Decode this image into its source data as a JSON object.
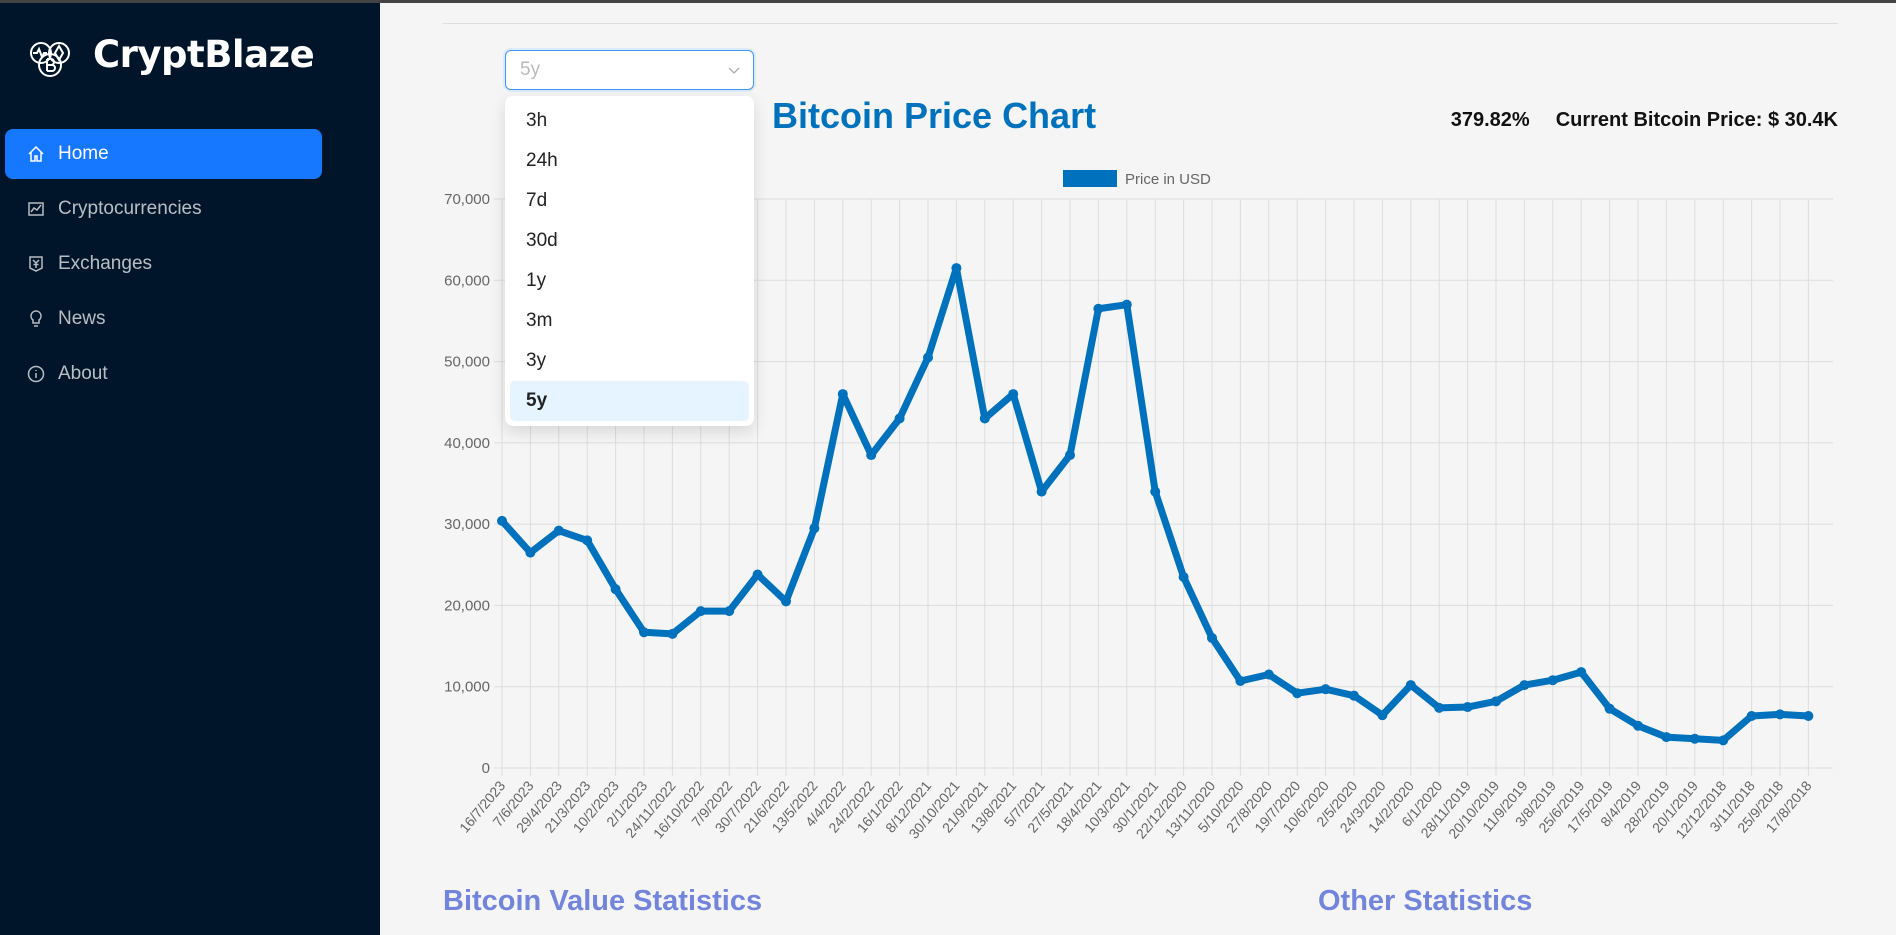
{
  "sidebar": {
    "brand": "CryptBlaze",
    "items": [
      {
        "label": "Home",
        "icon": "home-icon",
        "active": true
      },
      {
        "label": "Cryptocurrencies",
        "icon": "stock-chart-icon"
      },
      {
        "label": "Exchanges",
        "icon": "money-collect-icon"
      },
      {
        "label": "News",
        "icon": "bulb-icon"
      },
      {
        "label": "About",
        "icon": "info-circle-icon"
      }
    ]
  },
  "main": {
    "period_select": {
      "value": "5y",
      "options": [
        "3h",
        "24h",
        "7d",
        "30d",
        "1y",
        "3m",
        "3y",
        "5y"
      ]
    },
    "title": "Bitcoin Price Chart",
    "change": "379.82%",
    "current_price": "Current Bitcoin Price: $ 30.4K",
    "section_left": "Bitcoin Value Statistics",
    "section_right": "Other Statistics"
  },
  "colors": {
    "sidebar": "#001529",
    "accent": "#1677ff",
    "series": "#0071bd",
    "title": "#0071bd",
    "section": "#7284dc"
  },
  "chart_data": {
    "type": "line",
    "legend": [
      "Price in USD"
    ],
    "legend_placement": "top",
    "grid": true,
    "ylim": [
      0,
      70000
    ],
    "yticks": [
      0,
      10000,
      20000,
      30000,
      40000,
      50000,
      60000,
      70000
    ],
    "categories": [
      "16/7/2023",
      "7/6/2023",
      "29/4/2023",
      "21/3/2023",
      "10/2/2023",
      "2/1/2023",
      "24/11/2022",
      "16/10/2022",
      "7/9/2022",
      "30/7/2022",
      "21/6/2022",
      "13/5/2022",
      "4/4/2022",
      "24/2/2022",
      "16/1/2022",
      "8/12/2021",
      "30/10/2021",
      "21/9/2021",
      "13/8/2021",
      "5/7/2021",
      "27/5/2021",
      "18/4/2021",
      "10/3/2021",
      "30/1/2021",
      "22/12/2020",
      "13/11/2020",
      "5/10/2020",
      "27/8/2020",
      "19/7/2020",
      "10/6/2020",
      "2/5/2020",
      "24/3/2020",
      "14/2/2020",
      "6/1/2020",
      "28/11/2019",
      "20/10/2019",
      "11/9/2019",
      "3/8/2019",
      "25/6/2019",
      "17/5/2019",
      "8/4/2019",
      "28/2/2019",
      "20/1/2019",
      "12/12/2018",
      "3/11/2018",
      "25/9/2018",
      "17/8/2018"
    ],
    "series": [
      {
        "name": "Price in USD",
        "values": [
          30400,
          26500,
          29200,
          28000,
          22000,
          16700,
          16500,
          19300,
          19300,
          23800,
          20500,
          29500,
          46000,
          38500,
          43000,
          50500,
          61500,
          43000,
          46000,
          34000,
          38500,
          56500,
          57000,
          34000,
          23500,
          16000,
          10700,
          11500,
          9200,
          9700,
          8900,
          6500,
          10200,
          7400,
          7500,
          8200,
          10200,
          10800,
          11800,
          7300,
          5200,
          3800,
          3600,
          3400,
          6400,
          6600,
          6400
        ]
      }
    ]
  }
}
